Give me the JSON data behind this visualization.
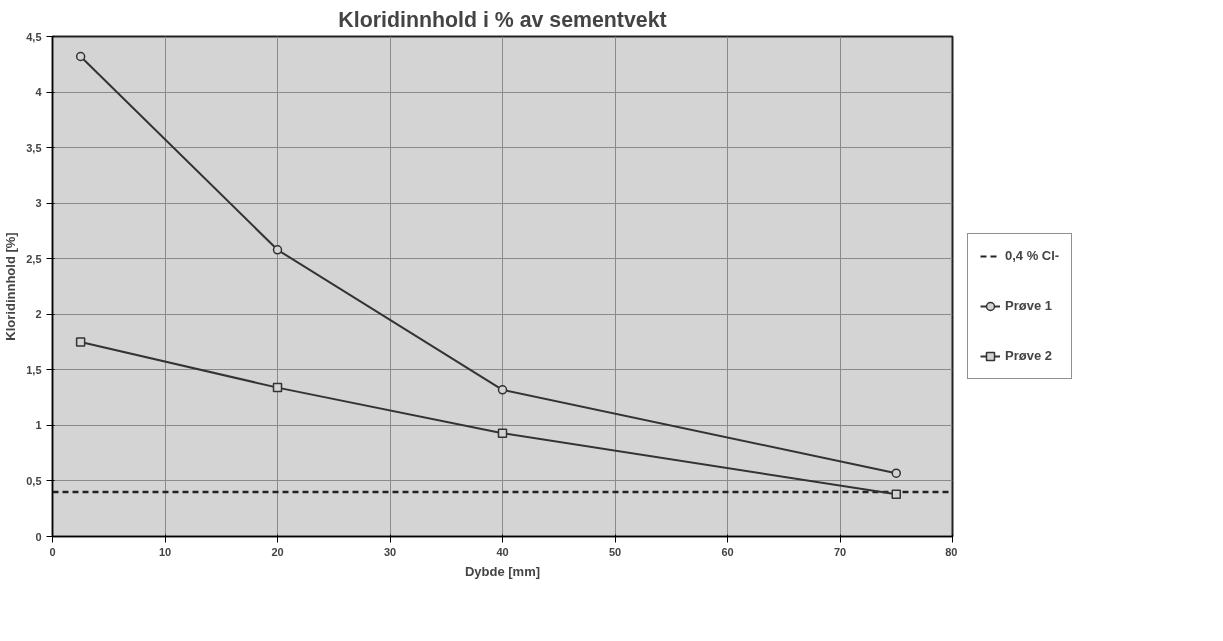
{
  "chart_data": {
    "type": "line",
    "title": "Kloridinnhold i % av sementvekt",
    "xlabel": "Dybde [mm]",
    "ylabel": "Kloridinnhold [%]",
    "xlim": [
      0,
      80
    ],
    "xticks": [
      0,
      10,
      20,
      30,
      40,
      50,
      60,
      70,
      80
    ],
    "ylim": [
      0,
      4.5
    ],
    "yticks": [
      0,
      {
        "value": 0.5,
        "label": "0,5"
      },
      1,
      {
        "value": 1.5,
        "label": "1,5"
      },
      2,
      {
        "value": 2.5,
        "label": "2,5"
      },
      3,
      {
        "value": 3.5,
        "label": "3,5"
      },
      4,
      {
        "value": 4.5,
        "label": "4,5"
      }
    ],
    "grid": true,
    "legend": "right",
    "series": [
      {
        "name": "0,4 % Cl-",
        "color": "#222222",
        "x": [
          0,
          80
        ],
        "values": [
          0.4,
          0.4
        ],
        "line_style": "dashed",
        "marker": "none"
      },
      {
        "name": "Prøve 1",
        "color": "#333333",
        "x": [
          2.5,
          20,
          40,
          75
        ],
        "values": [
          4.32,
          2.58,
          1.32,
          0.57
        ],
        "line_style": "solid",
        "marker": "circle"
      },
      {
        "name": "Prøve 2",
        "color": "#333333",
        "x": [
          2.5,
          20,
          40,
          75
        ],
        "values": [
          1.75,
          1.34,
          0.93,
          0.38
        ],
        "line_style": "solid",
        "marker": "square"
      }
    ]
  }
}
